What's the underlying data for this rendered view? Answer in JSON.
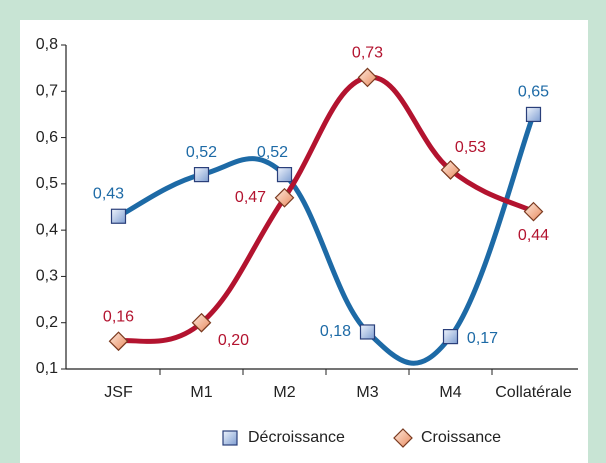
{
  "chart_data": {
    "type": "line",
    "categories": [
      "JSF",
      "M1",
      "M2",
      "M3",
      "M4",
      "Collatérale"
    ],
    "series": [
      {
        "name": "Décroissance",
        "color": "#1d6aa6",
        "values": [
          0.43,
          0.52,
          0.52,
          0.18,
          0.17,
          0.65
        ],
        "value_labels": [
          "0,43",
          "0,52",
          "0,52",
          "0,18",
          "0,17",
          "0,65"
        ]
      },
      {
        "name": "Croissance",
        "color": "#b3132f",
        "values": [
          0.16,
          0.2,
          0.47,
          0.73,
          0.53,
          0.44
        ],
        "value_labels": [
          "0,16",
          "0,20",
          "0,47",
          "0,73",
          "0,53",
          "0,44"
        ]
      }
    ],
    "ylim": [
      0.1,
      0.8
    ],
    "yticks": [
      {
        "value": 0.1,
        "label": "0,1"
      },
      {
        "value": 0.2,
        "label": "0,2"
      },
      {
        "value": 0.3,
        "label": "0,3"
      },
      {
        "value": 0.4,
        "label": "0,4"
      },
      {
        "value": 0.5,
        "label": "0,5"
      },
      {
        "value": 0.6,
        "label": "0,6"
      },
      {
        "value": 0.7,
        "label": "0,7"
      },
      {
        "value": 0.8,
        "label": "0,8"
      }
    ],
    "grid": false,
    "smooth": true,
    "legend": "bottom"
  }
}
